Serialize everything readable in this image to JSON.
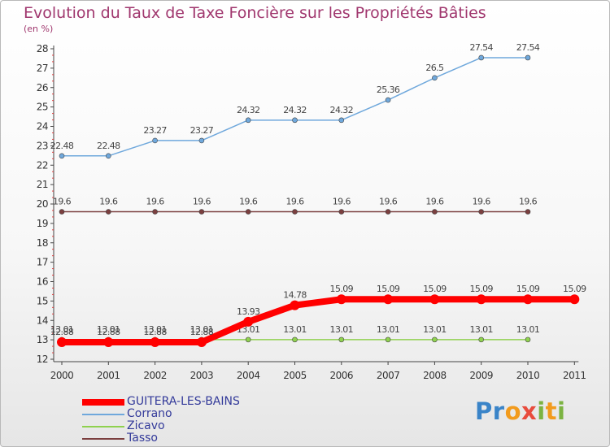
{
  "title": "Evolution du Taux de Taxe Foncière sur les Propriétés Bâties",
  "unit_label": "(en %)",
  "logo": {
    "text": "Proxiti"
  },
  "chart_data": {
    "type": "line",
    "title": "Evolution du Taux de Taxe Foncière sur les Propriétés Bâties",
    "ylabel": "(en %)",
    "x": [
      "2000",
      "2001",
      "2002",
      "2003",
      "2004",
      "2005",
      "2006",
      "2007",
      "2008",
      "2009",
      "2010",
      "2011"
    ],
    "ylim": [
      12,
      28
    ],
    "yticks": [
      12,
      13,
      14,
      15,
      16,
      17,
      18,
      19,
      20,
      21,
      22,
      23,
      24,
      25,
      26,
      27,
      28
    ],
    "grid": false,
    "legend_position": "bottom-left",
    "series": [
      {
        "name": "GUITERA-LES-BAINS",
        "color": "#ff0000",
        "values": [
          12.88,
          12.88,
          12.88,
          12.88,
          13.93,
          14.78,
          15.09,
          15.09,
          15.09,
          15.09,
          15.09,
          15.09
        ],
        "labels": [
          "12.88",
          "12.88",
          "12.88",
          "12.88",
          "13.93",
          "14.78",
          "15.09",
          "15.09",
          "15.09",
          "15.09",
          "15.09",
          "15.09"
        ]
      },
      {
        "name": "Corrano",
        "color": "#6fa8dc",
        "values": [
          22.48,
          22.48,
          23.27,
          23.27,
          24.32,
          24.32,
          24.32,
          25.36,
          26.5,
          27.54,
          27.54,
          null
        ],
        "labels": [
          "22.48",
          "22.48",
          "23.27",
          "23.27",
          "24.32",
          "24.32",
          "24.32",
          "25.36",
          "26.5",
          "27.54",
          "27.54",
          ""
        ]
      },
      {
        "name": "Zicavo",
        "color": "#8fd14f",
        "values": [
          13.01,
          13.01,
          13.01,
          13.01,
          13.01,
          13.01,
          13.01,
          13.01,
          13.01,
          13.01,
          13.01,
          null
        ],
        "labels": [
          "13.01",
          "13.01",
          "13.01",
          "13.01",
          "13.01",
          "13.01",
          "13.01",
          "13.01",
          "13.01",
          "13.01",
          "13.01",
          ""
        ]
      },
      {
        "name": "Tasso",
        "color": "#7b3f3f",
        "values": [
          19.6,
          19.6,
          19.6,
          19.6,
          19.6,
          19.6,
          19.6,
          19.6,
          19.6,
          19.6,
          19.6,
          null
        ],
        "labels": [
          "19.6",
          "19.6",
          "19.6",
          "19.6",
          "19.6",
          "19.6",
          "19.6",
          "19.6",
          "19.6",
          "19.6",
          "19.6",
          ""
        ]
      }
    ]
  }
}
